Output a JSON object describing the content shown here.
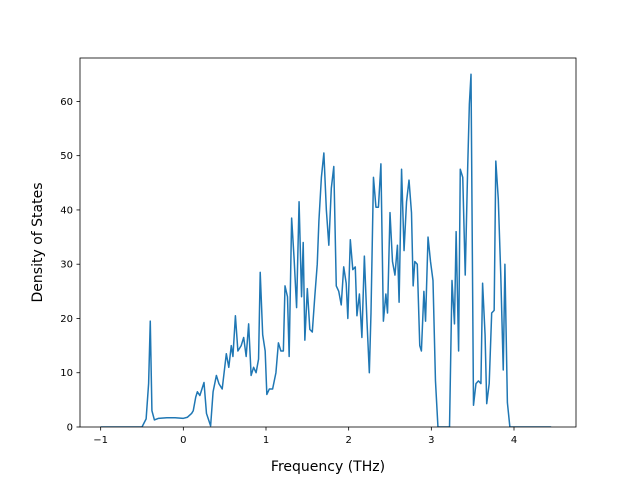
{
  "chart_data": {
    "type": "line",
    "title": "",
    "xlabel": "Frequency (THz)",
    "ylabel": "Density of States",
    "xlim": [
      -1.25,
      4.75
    ],
    "ylim": [
      0,
      68
    ],
    "x_ticks": [
      -1,
      0,
      1,
      2,
      3,
      4
    ],
    "y_ticks": [
      0,
      10,
      20,
      30,
      40,
      50,
      60
    ],
    "x_tick_labels": [
      "−1",
      "0",
      "1",
      "2",
      "3",
      "4"
    ],
    "y_tick_labels": [
      "0",
      "10",
      "20",
      "30",
      "40",
      "50",
      "60"
    ],
    "grid": false,
    "legend": "none",
    "series": [
      {
        "color": "#1f77b4",
        "points": [
          [
            -1.0,
            0
          ],
          [
            -0.5,
            0
          ],
          [
            -0.45,
            1.5
          ],
          [
            -0.42,
            8
          ],
          [
            -0.4,
            19.5
          ],
          [
            -0.38,
            3
          ],
          [
            -0.35,
            1.3
          ],
          [
            -0.3,
            1.6
          ],
          [
            -0.2,
            1.7
          ],
          [
            -0.1,
            1.7
          ],
          [
            0.0,
            1.6
          ],
          [
            0.05,
            1.8
          ],
          [
            0.1,
            2.5
          ],
          [
            0.12,
            3.0
          ],
          [
            0.15,
            5.5
          ],
          [
            0.17,
            6.5
          ],
          [
            0.2,
            5.8
          ],
          [
            0.25,
            8.2
          ],
          [
            0.28,
            2.5
          ],
          [
            0.33,
            0.2
          ],
          [
            0.36,
            6.5
          ],
          [
            0.4,
            9.5
          ],
          [
            0.43,
            8
          ],
          [
            0.47,
            7
          ],
          [
            0.52,
            13.5
          ],
          [
            0.55,
            11
          ],
          [
            0.58,
            15
          ],
          [
            0.6,
            13
          ],
          [
            0.63,
            20.5
          ],
          [
            0.66,
            14
          ],
          [
            0.7,
            15
          ],
          [
            0.73,
            16.5
          ],
          [
            0.76,
            13
          ],
          [
            0.79,
            19
          ],
          [
            0.82,
            9.5
          ],
          [
            0.85,
            11
          ],
          [
            0.88,
            10
          ],
          [
            0.91,
            12.5
          ],
          [
            0.93,
            28.5
          ],
          [
            0.96,
            17
          ],
          [
            0.99,
            14
          ],
          [
            1.01,
            6
          ],
          [
            1.04,
            7
          ],
          [
            1.08,
            7
          ],
          [
            1.12,
            10
          ],
          [
            1.15,
            15.5
          ],
          [
            1.18,
            14
          ],
          [
            1.21,
            14
          ],
          [
            1.23,
            26
          ],
          [
            1.26,
            24
          ],
          [
            1.28,
            13
          ],
          [
            1.31,
            38.5
          ],
          [
            1.34,
            31
          ],
          [
            1.37,
            22
          ],
          [
            1.4,
            41.5
          ],
          [
            1.43,
            24
          ],
          [
            1.45,
            34
          ],
          [
            1.47,
            16
          ],
          [
            1.5,
            25.5
          ],
          [
            1.53,
            18
          ],
          [
            1.56,
            17.5
          ],
          [
            1.59,
            24
          ],
          [
            1.62,
            30
          ],
          [
            1.64,
            38
          ],
          [
            1.67,
            46
          ],
          [
            1.7,
            50.5
          ],
          [
            1.73,
            40
          ],
          [
            1.76,
            33.5
          ],
          [
            1.79,
            44
          ],
          [
            1.82,
            48
          ],
          [
            1.85,
            26
          ],
          [
            1.88,
            25
          ],
          [
            1.91,
            22.5
          ],
          [
            1.94,
            29.5
          ],
          [
            1.97,
            26.5
          ],
          [
            1.99,
            20
          ],
          [
            2.02,
            34.5
          ],
          [
            2.05,
            29
          ],
          [
            2.08,
            29.5
          ],
          [
            2.1,
            20.5
          ],
          [
            2.13,
            24.5
          ],
          [
            2.16,
            16.5
          ],
          [
            2.19,
            31.5
          ],
          [
            2.22,
            20
          ],
          [
            2.25,
            10
          ],
          [
            2.27,
            21
          ],
          [
            2.3,
            46
          ],
          [
            2.33,
            40.5
          ],
          [
            2.36,
            40.5
          ],
          [
            2.39,
            48.5
          ],
          [
            2.42,
            19.5
          ],
          [
            2.45,
            24.5
          ],
          [
            2.47,
            21
          ],
          [
            2.5,
            39.5
          ],
          [
            2.53,
            30.5
          ],
          [
            2.56,
            28
          ],
          [
            2.59,
            33.5
          ],
          [
            2.61,
            23
          ],
          [
            2.64,
            47.5
          ],
          [
            2.67,
            32.5
          ],
          [
            2.7,
            41.5
          ],
          [
            2.73,
            45.5
          ],
          [
            2.76,
            39.5
          ],
          [
            2.78,
            26
          ],
          [
            2.8,
            30.5
          ],
          [
            2.83,
            30
          ],
          [
            2.86,
            15
          ],
          [
            2.88,
            14
          ],
          [
            2.91,
            25
          ],
          [
            2.93,
            19.5
          ],
          [
            2.96,
            35
          ],
          [
            2.99,
            30.5
          ],
          [
            3.02,
            27
          ],
          [
            3.05,
            8.5
          ],
          [
            3.08,
            0
          ],
          [
            3.13,
            0
          ],
          [
            3.18,
            0
          ],
          [
            3.22,
            0
          ],
          [
            3.25,
            27
          ],
          [
            3.28,
            19
          ],
          [
            3.3,
            36
          ],
          [
            3.33,
            14
          ],
          [
            3.35,
            47.5
          ],
          [
            3.38,
            46
          ],
          [
            3.41,
            28
          ],
          [
            3.44,
            48
          ],
          [
            3.46,
            59.5
          ],
          [
            3.48,
            65
          ],
          [
            3.51,
            4
          ],
          [
            3.54,
            8
          ],
          [
            3.57,
            8.5
          ],
          [
            3.6,
            8
          ],
          [
            3.62,
            26.5
          ],
          [
            3.65,
            17
          ],
          [
            3.67,
            4.3
          ],
          [
            3.7,
            8
          ],
          [
            3.73,
            21
          ],
          [
            3.76,
            21.5
          ],
          [
            3.78,
            49
          ],
          [
            3.81,
            42
          ],
          [
            3.84,
            28
          ],
          [
            3.87,
            10.5
          ],
          [
            3.89,
            30
          ],
          [
            3.92,
            4.5
          ],
          [
            3.95,
            0
          ],
          [
            4.0,
            0
          ],
          [
            4.2,
            0
          ],
          [
            4.45,
            0
          ]
        ]
      }
    ]
  }
}
